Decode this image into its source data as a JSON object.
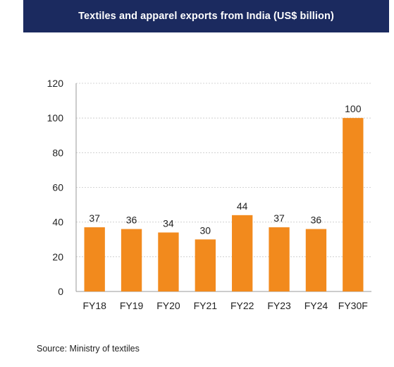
{
  "header": {
    "title": "Textiles and apparel exports from India (US$ billion)"
  },
  "footer": {
    "source": "Source: Ministry of textiles"
  },
  "chart_data": {
    "type": "bar",
    "title": "Textiles and apparel exports from India (US$ billion)",
    "categories": [
      "FY18",
      "FY19",
      "FY20",
      "FY21",
      "FY22",
      "FY23",
      "FY24",
      "FY30F"
    ],
    "values": [
      37,
      36,
      34,
      30,
      44,
      37,
      36,
      100
    ],
    "ylim": [
      0,
      120
    ],
    "yticks": [
      0,
      20,
      40,
      60,
      80,
      100,
      120
    ],
    "grid": true,
    "bar_color": "#f28a1d",
    "data_labels": true
  }
}
